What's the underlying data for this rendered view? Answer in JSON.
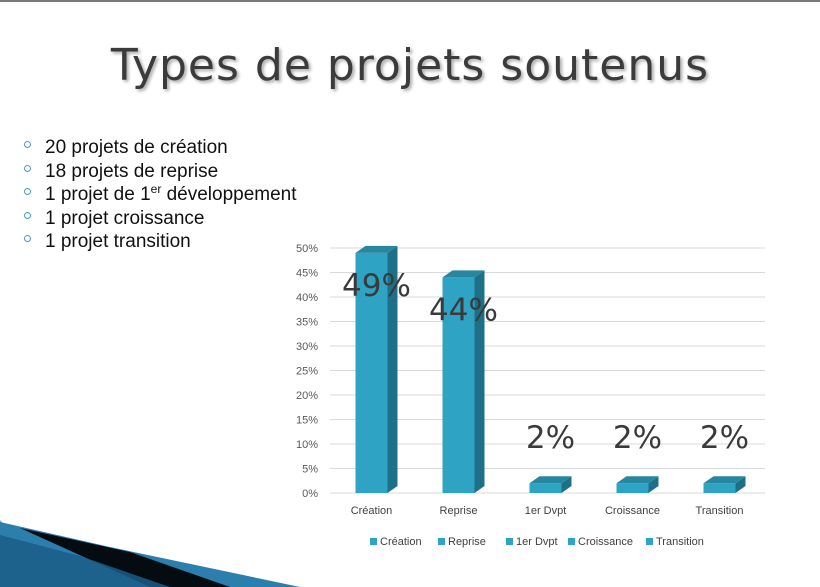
{
  "slide": {
    "title": "Types de projets soutenus",
    "bullets": [
      {
        "text": "20 projets de création"
      },
      {
        "text": "18 projets de reprise"
      },
      {
        "pre": "1 projet de 1",
        "sup": "er",
        "post": " développement"
      },
      {
        "text": "1 projet croissance"
      },
      {
        "text": "1 projet transition"
      }
    ]
  },
  "chart_data": {
    "type": "bar",
    "style": "3d-column",
    "categories": [
      "Création",
      "Reprise",
      "1er Dvpt",
      "Croissance",
      "Transition"
    ],
    "values": [
      49,
      44,
      2,
      2,
      2
    ],
    "data_labels": [
      "49%",
      "44%",
      "2%",
      "2%",
      "2%"
    ],
    "ylim": [
      0,
      50
    ],
    "yticks": [
      "0%",
      "5%",
      "10%",
      "15%",
      "20%",
      "25%",
      "30%",
      "35%",
      "40%",
      "45%",
      "50%"
    ],
    "grid": true,
    "legend_position": "bottom",
    "legend": [
      "Création",
      "Reprise",
      "1er Dvpt",
      "Croissance",
      "Transition"
    ],
    "bar_color": "#2fa3c4",
    "bar_side_color": "#1d7088",
    "bar_top_color": "#27879f",
    "title": "",
    "xlabel": "",
    "ylabel": ""
  }
}
